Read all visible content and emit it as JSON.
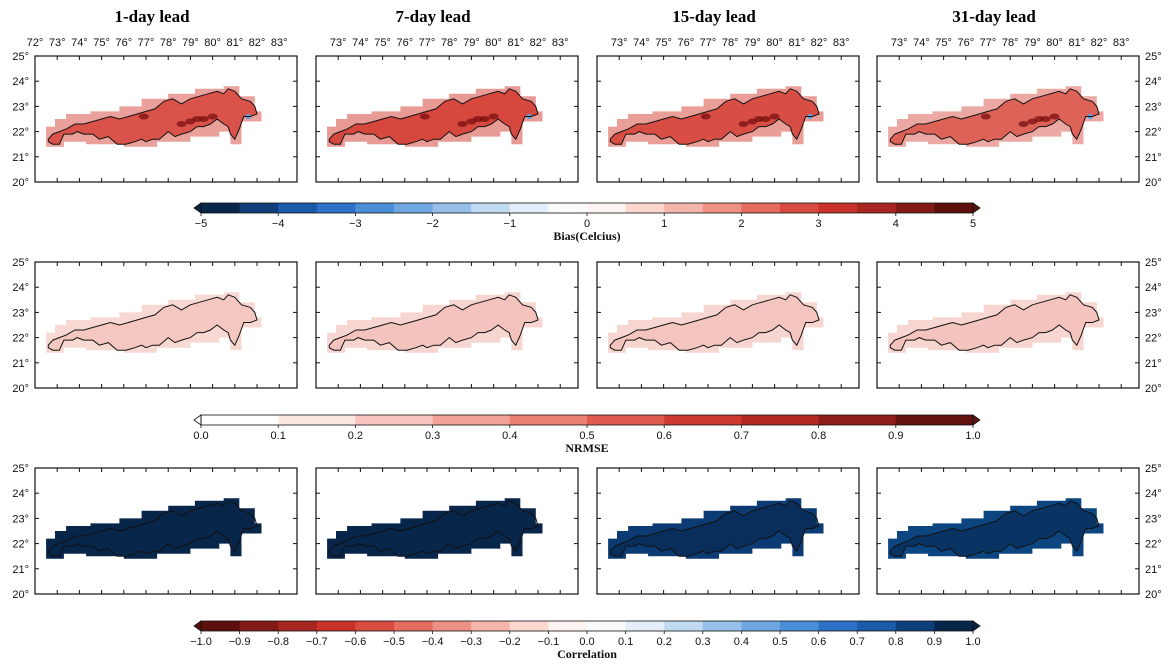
{
  "figure": {
    "lead_titles": [
      "1-day lead",
      "7-day lead",
      "15-day lead",
      "31-day lead"
    ],
    "lon_ticks": [
      "72°",
      "73°",
      "74°",
      "75°",
      "76°",
      "77°",
      "78°",
      "79°",
      "80°",
      "81°",
      "82°",
      "83°"
    ],
    "lat_ticks": [
      "25°",
      "24°",
      "23°",
      "22°",
      "21°",
      "20°"
    ]
  },
  "rows": [
    {
      "metric": "Bias",
      "panel_fills": [
        "#d9534a",
        "#d6473e",
        "#d84e44",
        "#dd6258"
      ],
      "hotspot_color": "#7a0f10",
      "cold_spot_color": "#5aa0e0",
      "colorbar": {
        "label": "Bias(Celcius)",
        "tick_labels": [
          "−5",
          "−4",
          "−3",
          "−2",
          "−1",
          "0",
          "1",
          "2",
          "3",
          "4",
          "5"
        ],
        "colors": [
          "#08254a",
          "#0f3f7a",
          "#1a5aa8",
          "#2d72c8",
          "#4a8ed8",
          "#6da6e0",
          "#96c0ea",
          "#c0daf2",
          "#e3eefa",
          "#f9fbfd",
          "#fdf3f0",
          "#fbd7d0",
          "#f5b5ab",
          "#ee9185",
          "#e56c61",
          "#d94a40",
          "#c83229",
          "#a82620",
          "#821a16",
          "#5c100e"
        ]
      }
    },
    {
      "metric": "NRMSE",
      "panel_fills": [
        "#f4c7c1",
        "#f4c3bd",
        "#f4c5bf",
        "#f4c3bd"
      ],
      "colorbar": {
        "label": "NRMSE",
        "tick_labels": [
          "0.0",
          "0.1",
          "0.2",
          "0.3",
          "0.4",
          "0.5",
          "0.6",
          "0.7",
          "0.8",
          "0.9",
          "1.0"
        ],
        "colors": [
          "#ffffff",
          "#fde7e3",
          "#f8c5be",
          "#f2a298",
          "#ea7f73",
          "#e05a4f",
          "#cf3a30",
          "#b22a23",
          "#8c1d18",
          "#621310"
        ]
      }
    },
    {
      "metric": "Correlation",
      "panel_fills": [
        "#08254a",
        "#08254a",
        "#0c3a72",
        "#0c4580"
      ],
      "colorbar": {
        "label": "Correlation",
        "tick_labels": [
          "−1.0",
          "−0.9",
          "−0.8",
          "−0.7",
          "−0.6",
          "−0.5",
          "−0.4",
          "−0.3",
          "−0.2",
          "−0.1",
          "0.0",
          "0.1",
          "0.2",
          "0.3",
          "0.4",
          "0.5",
          "0.6",
          "0.7",
          "0.8",
          "0.9",
          "1.0"
        ],
        "colors": [
          "#5c100e",
          "#821a16",
          "#a82620",
          "#c83229",
          "#d94a40",
          "#e56c61",
          "#ee9185",
          "#f5b5ab",
          "#fbd7d0",
          "#fdf3f0",
          "#f9fbfd",
          "#e3eefa",
          "#c0daf2",
          "#96c0ea",
          "#6da6e0",
          "#4a8ed8",
          "#2d72c8",
          "#1a5aa8",
          "#0f3f7a",
          "#08254a"
        ]
      }
    }
  ]
}
